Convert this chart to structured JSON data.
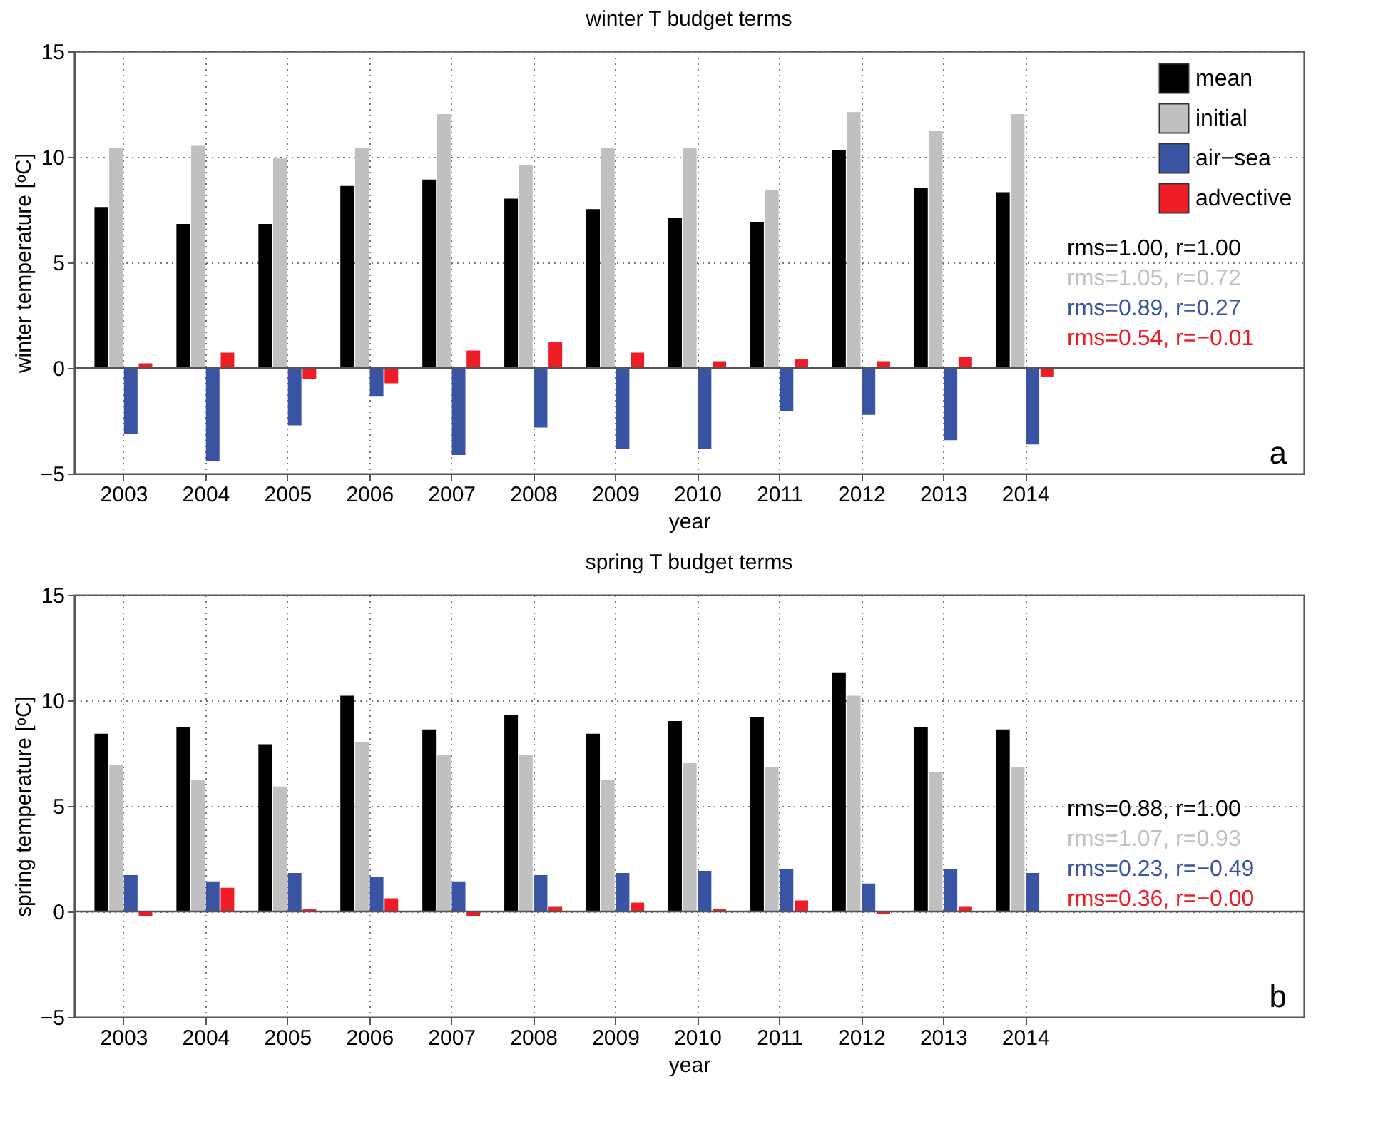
{
  "chart_data": [
    {
      "type": "bar",
      "title": "winter T budget terms",
      "xlabel": "year",
      "ylabel": "winter temperature [ᵒC]",
      "x": [
        2003,
        2004,
        2005,
        2006,
        2007,
        2008,
        2009,
        2010,
        2011,
        2012,
        2013,
        2014
      ],
      "series": [
        {
          "name": "mean",
          "color": "#000000",
          "values": [
            7.6,
            6.8,
            6.8,
            8.6,
            8.9,
            8.0,
            7.5,
            7.1,
            6.9,
            10.3,
            8.5,
            8.3
          ]
        },
        {
          "name": "initial",
          "color": "#c0c0c0",
          "values": [
            10.4,
            10.5,
            9.9,
            10.4,
            12.0,
            9.6,
            10.4,
            10.4,
            8.4,
            12.1,
            11.2,
            12.0
          ]
        },
        {
          "name": "air−sea",
          "color": "#3a54a4",
          "values": [
            -3.1,
            -4.4,
            -2.7,
            -1.3,
            -4.1,
            -2.8,
            -3.8,
            -3.8,
            -2.0,
            -2.2,
            -3.4,
            -3.6
          ]
        },
        {
          "name": "advective",
          "color": "#ee1c25",
          "values": [
            0.2,
            0.7,
            -0.5,
            -0.7,
            0.8,
            1.2,
            0.7,
            0.3,
            0.4,
            0.3,
            0.5,
            -0.4
          ]
        }
      ],
      "xlim": [
        2002.4,
        2017.4
      ],
      "xticks": [
        2003,
        2004,
        2005,
        2006,
        2007,
        2008,
        2009,
        2010,
        2011,
        2012,
        2013,
        2014
      ],
      "ylim": [
        -5,
        15
      ],
      "yticks": [
        -5,
        0,
        5,
        10,
        15
      ],
      "grid": true,
      "legend": "top right",
      "ref_lines": [
        {
          "axis": "y",
          "value": 0
        }
      ],
      "annotations": [
        "rms=1.00, r=1.00",
        "rms=1.05, r=0.72",
        "rms=0.89, r=0.27",
        "rms=0.54, r=−0.01",
        "a"
      ]
    },
    {
      "type": "bar",
      "title": "spring T budget terms",
      "xlabel": "year",
      "ylabel": "spring temperature [ᵒC]",
      "x": [
        2003,
        2004,
        2005,
        2006,
        2007,
        2008,
        2009,
        2010,
        2011,
        2012,
        2013,
        2014
      ],
      "series": [
        {
          "color": "#000000",
          "values": [
            8.4,
            8.7,
            7.9,
            10.2,
            8.6,
            9.3,
            8.4,
            9.0,
            9.2,
            11.3,
            8.7,
            8.6
          ]
        },
        {
          "color": "#c0c0c0",
          "values": [
            6.9,
            6.2,
            5.9,
            8.0,
            7.4,
            7.4,
            6.2,
            7.0,
            6.8,
            10.2,
            6.6,
            6.8
          ]
        },
        {
          "color": "#3a54a4",
          "values": [
            1.7,
            1.4,
            1.8,
            1.6,
            1.4,
            1.7,
            1.8,
            1.9,
            2.0,
            1.3,
            2.0,
            1.8
          ]
        },
        {
          "color": "#ee1c25",
          "values": [
            -0.2,
            1.1,
            0.1,
            0.6,
            -0.2,
            0.2,
            0.4,
            0.1,
            0.5,
            -0.1,
            0.2,
            0.0
          ]
        }
      ],
      "xlim": [
        2002.4,
        2017.4
      ],
      "xticks": [
        2003,
        2004,
        2005,
        2006,
        2007,
        2008,
        2009,
        2010,
        2011,
        2012,
        2013,
        2014
      ],
      "ylim": [
        -5,
        15
      ],
      "yticks": [
        -5,
        0,
        5,
        10,
        15
      ],
      "grid": true,
      "ref_lines": [
        {
          "axis": "y",
          "value": 0
        }
      ],
      "annotations": [
        "rms=0.88, r=1.00",
        "rms=1.07, r=0.93",
        "rms=0.23, r=−0.49",
        "rms=0.36, r=−0.00",
        "b"
      ]
    }
  ]
}
